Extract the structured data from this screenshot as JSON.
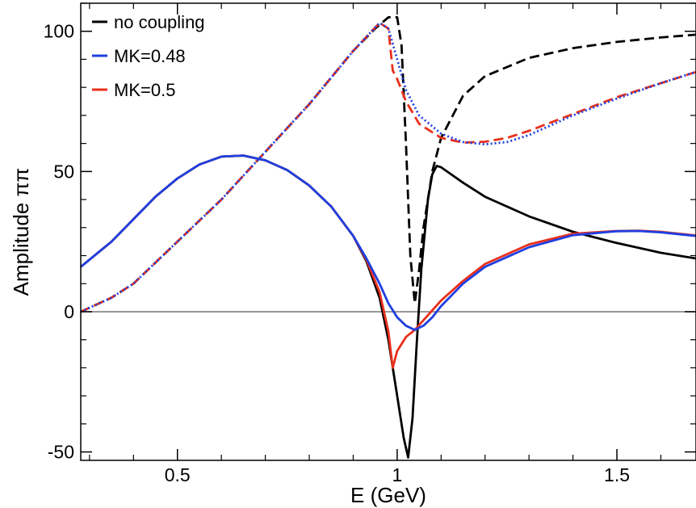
{
  "chart_data": {
    "type": "line",
    "xlabel": "E (GeV)",
    "ylabel": "Amplitude ππ",
    "xlim": [
      0.28,
      1.68
    ],
    "ylim": [
      -53,
      110
    ],
    "x_ticks": [
      0.5,
      1,
      1.5
    ],
    "x_tick_labels": [
      "0.5",
      "1",
      "1.5"
    ],
    "x_minor_step": 0.1,
    "y_ticks": [
      -50,
      0,
      50,
      100
    ],
    "y_tick_labels": [
      "-50",
      "0",
      "50",
      "100"
    ],
    "y_minor_step": 10,
    "grid": false,
    "zero_line": true,
    "legend_position": "top-left",
    "legend": [
      {
        "label": "no coupling",
        "color": "#000000"
      },
      {
        "label": "MK=0.48",
        "color": "#1f3fe0"
      },
      {
        "label": "MK=0.5",
        "color": "#e8301c"
      }
    ],
    "series": [
      {
        "name": "no coupling",
        "part": "solid",
        "color": "#000000",
        "dash": "",
        "points": [
          [
            0.28,
            16
          ],
          [
            0.35,
            25
          ],
          [
            0.4,
            33
          ],
          [
            0.45,
            41
          ],
          [
            0.5,
            47.5
          ],
          [
            0.55,
            52.5
          ],
          [
            0.6,
            55.3
          ],
          [
            0.65,
            55.7
          ],
          [
            0.7,
            54
          ],
          [
            0.75,
            50.5
          ],
          [
            0.8,
            45
          ],
          [
            0.85,
            37.5
          ],
          [
            0.9,
            27
          ],
          [
            0.93,
            18
          ],
          [
            0.96,
            5
          ],
          [
            0.98,
            -10
          ],
          [
            1.0,
            -30
          ],
          [
            1.015,
            -45
          ],
          [
            1.025,
            -52
          ],
          [
            1.035,
            -38
          ],
          [
            1.045,
            -10
          ],
          [
            1.055,
            15
          ],
          [
            1.07,
            40
          ],
          [
            1.08,
            49
          ],
          [
            1.09,
            52
          ],
          [
            1.1,
            51.5
          ],
          [
            1.15,
            46
          ],
          [
            1.2,
            41
          ],
          [
            1.3,
            34
          ],
          [
            1.4,
            28.5
          ],
          [
            1.5,
            24.5
          ],
          [
            1.6,
            21
          ],
          [
            1.68,
            19
          ]
        ]
      },
      {
        "name": "no coupling",
        "part": "dashed",
        "color": "#000000",
        "dash": "12 6",
        "points": [
          [
            0.28,
            0
          ],
          [
            0.35,
            5
          ],
          [
            0.4,
            10
          ],
          [
            0.5,
            25
          ],
          [
            0.6,
            40
          ],
          [
            0.7,
            57
          ],
          [
            0.8,
            74
          ],
          [
            0.9,
            93
          ],
          [
            0.95,
            101
          ],
          [
            0.98,
            105
          ],
          [
            1.0,
            105
          ],
          [
            1.01,
            95
          ],
          [
            1.02,
            60
          ],
          [
            1.03,
            20
          ],
          [
            1.04,
            3
          ],
          [
            1.05,
            15
          ],
          [
            1.06,
            30
          ],
          [
            1.08,
            50
          ],
          [
            1.1,
            62
          ],
          [
            1.15,
            77
          ],
          [
            1.2,
            84
          ],
          [
            1.3,
            90.5
          ],
          [
            1.4,
            94
          ],
          [
            1.5,
            96.2
          ],
          [
            1.6,
            97.8
          ],
          [
            1.68,
            98.8
          ]
        ]
      },
      {
        "name": "MK=0.48",
        "part": "solid",
        "color": "#1f3fe0",
        "dash": "",
        "points": [
          [
            0.28,
            16
          ],
          [
            0.35,
            25
          ],
          [
            0.4,
            33
          ],
          [
            0.45,
            41
          ],
          [
            0.5,
            47.5
          ],
          [
            0.55,
            52.5
          ],
          [
            0.6,
            55.3
          ],
          [
            0.65,
            55.7
          ],
          [
            0.7,
            54
          ],
          [
            0.75,
            50.5
          ],
          [
            0.8,
            45
          ],
          [
            0.85,
            37.5
          ],
          [
            0.9,
            27
          ],
          [
            0.93,
            19
          ],
          [
            0.96,
            10
          ],
          [
            0.98,
            3
          ],
          [
            1.0,
            -2
          ],
          [
            1.02,
            -5
          ],
          [
            1.04,
            -6.5
          ],
          [
            1.06,
            -5
          ],
          [
            1.08,
            -2
          ],
          [
            1.1,
            2
          ],
          [
            1.15,
            10
          ],
          [
            1.2,
            16
          ],
          [
            1.3,
            23
          ],
          [
            1.4,
            27.3
          ],
          [
            1.5,
            28.7
          ],
          [
            1.55,
            28.8
          ],
          [
            1.6,
            28.3
          ],
          [
            1.68,
            27
          ]
        ]
      },
      {
        "name": "MK=0.48",
        "part": "dotted",
        "color": "#1f3fe0",
        "dash": "2 3",
        "points": [
          [
            0.28,
            0
          ],
          [
            0.35,
            5
          ],
          [
            0.4,
            10
          ],
          [
            0.5,
            25
          ],
          [
            0.6,
            40
          ],
          [
            0.7,
            57
          ],
          [
            0.8,
            74
          ],
          [
            0.9,
            93
          ],
          [
            0.96,
            103
          ],
          [
            0.98,
            101
          ],
          [
            1.0,
            90
          ],
          [
            1.02,
            79
          ],
          [
            1.05,
            70
          ],
          [
            1.1,
            63.5
          ],
          [
            1.15,
            60.5
          ],
          [
            1.2,
            59.7
          ],
          [
            1.25,
            60.5
          ],
          [
            1.3,
            63
          ],
          [
            1.4,
            70
          ],
          [
            1.5,
            76
          ],
          [
            1.6,
            81.5
          ],
          [
            1.68,
            85.5
          ]
        ]
      },
      {
        "name": "MK=0.5",
        "part": "solid",
        "color": "#e8301c",
        "dash": "",
        "points": [
          [
            0.28,
            16
          ],
          [
            0.35,
            25
          ],
          [
            0.4,
            33
          ],
          [
            0.45,
            41
          ],
          [
            0.5,
            47.5
          ],
          [
            0.55,
            52.5
          ],
          [
            0.6,
            55.3
          ],
          [
            0.65,
            55.7
          ],
          [
            0.7,
            54
          ],
          [
            0.75,
            50.5
          ],
          [
            0.8,
            45
          ],
          [
            0.85,
            37.5
          ],
          [
            0.9,
            27
          ],
          [
            0.93,
            18.5
          ],
          [
            0.96,
            7
          ],
          [
            0.98,
            -7
          ],
          [
            0.99,
            -20
          ],
          [
            1.0,
            -14
          ],
          [
            1.02,
            -9
          ],
          [
            1.04,
            -6.5
          ],
          [
            1.06,
            -3
          ],
          [
            1.08,
            0.5
          ],
          [
            1.1,
            4
          ],
          [
            1.15,
            11
          ],
          [
            1.2,
            17
          ],
          [
            1.3,
            24
          ],
          [
            1.4,
            27.8
          ],
          [
            1.5,
            28.8
          ],
          [
            1.55,
            28.9
          ],
          [
            1.6,
            28.5
          ],
          [
            1.68,
            27.2
          ]
        ]
      },
      {
        "name": "MK=0.5",
        "part": "dashed",
        "color": "#e8301c",
        "dash": "12 6",
        "points": [
          [
            0.28,
            0
          ],
          [
            0.35,
            5
          ],
          [
            0.4,
            10
          ],
          [
            0.5,
            25
          ],
          [
            0.6,
            40
          ],
          [
            0.7,
            57
          ],
          [
            0.8,
            74
          ],
          [
            0.9,
            93
          ],
          [
            0.96,
            103
          ],
          [
            0.98,
            101
          ],
          [
            0.99,
            86
          ],
          [
            1.0,
            83
          ],
          [
            1.02,
            75
          ],
          [
            1.05,
            67
          ],
          [
            1.1,
            62
          ],
          [
            1.15,
            60.3
          ],
          [
            1.2,
            60.6
          ],
          [
            1.25,
            62
          ],
          [
            1.3,
            64.5
          ],
          [
            1.4,
            70.5
          ],
          [
            1.5,
            76.5
          ],
          [
            1.6,
            81.5
          ],
          [
            1.68,
            85.5
          ]
        ]
      }
    ]
  }
}
